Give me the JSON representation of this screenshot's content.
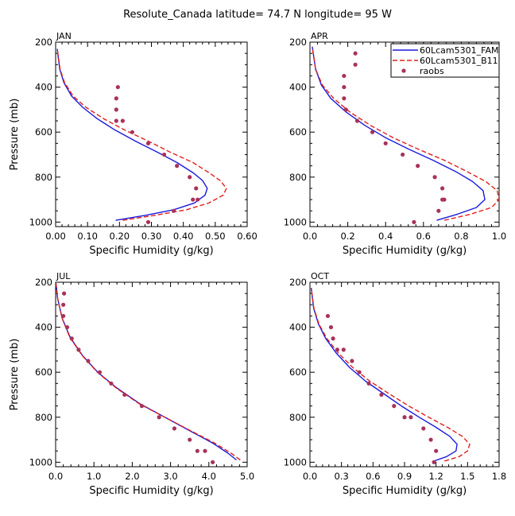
{
  "title": "Resolute_Canada   latitude= 74.7 N longitude= 95 W",
  "colors": {
    "model1": "#1a1adc",
    "model2": "#e0201c",
    "obs": "#a8325a"
  },
  "legend": {
    "entries": [
      {
        "label": "60Lcam5301_FAM",
        "style": "solid",
        "color": "#1a1adc"
      },
      {
        "label": "60Lcam5301_B11",
        "style": "dashed",
        "color": "#e0201c"
      },
      {
        "label": "raobs",
        "style": "dot",
        "color": "#a8325a"
      }
    ]
  },
  "chart_data": [
    {
      "type": "line",
      "panel": "JAN",
      "xlabel": "Specific Humidity (g/kg)",
      "ylabel": "Pressure (mb)",
      "xlim": [
        0,
        0.6
      ],
      "ylim": [
        1020,
        200
      ],
      "xticks": [
        "0.00",
        "0.10",
        "0.20",
        "0.30",
        "0.40",
        "0.50",
        "0.60"
      ],
      "yticks": [
        200,
        400,
        600,
        800,
        1000
      ],
      "series": [
        {
          "name": "60Lcam5301_FAM",
          "style": "solid",
          "color": "#1a1adc",
          "x": [
            0.188,
            0.28,
            0.37,
            0.435,
            0.468,
            0.475,
            0.46,
            0.43,
            0.38,
            0.32,
            0.25,
            0.185,
            0.13,
            0.085,
            0.05,
            0.026,
            0.013,
            0.005
          ],
          "y": [
            992,
            970,
            945,
            915,
            880,
            850,
            815,
            780,
            735,
            690,
            640,
            590,
            540,
            490,
            440,
            380,
            320,
            230
          ]
        },
        {
          "name": "60Lcam5301_B11",
          "style": "dashed",
          "color": "#e0201c",
          "x": [
            0.21,
            0.31,
            0.41,
            0.48,
            0.525,
            0.535,
            0.515,
            0.48,
            0.43,
            0.36,
            0.29,
            0.215,
            0.15,
            0.095,
            0.055,
            0.028,
            0.014,
            0.005
          ],
          "y": [
            992,
            970,
            945,
            915,
            880,
            850,
            815,
            780,
            735,
            690,
            640,
            590,
            540,
            490,
            440,
            380,
            320,
            230
          ]
        },
        {
          "name": "raobs",
          "style": "dot",
          "color": "#a8325a",
          "x": [
            0.195,
            0.19,
            0.19,
            0.19,
            0.21,
            0.24,
            0.29,
            0.34,
            0.38,
            0.42,
            0.44,
            0.445,
            0.43,
            0.37,
            0.29
          ],
          "y": [
            400,
            450,
            500,
            550,
            550,
            600,
            650,
            700,
            750,
            800,
            850,
            900,
            900,
            950,
            1000
          ]
        }
      ]
    },
    {
      "type": "line",
      "panel": "APR",
      "xlabel": "Specific Humidity (g/kg)",
      "ylabel": "Pressure (mb)",
      "xlim": [
        0,
        1.0
      ],
      "ylim": [
        1020,
        200
      ],
      "xticks": [
        "0.0",
        "0.2",
        "0.4",
        "0.6",
        "0.8",
        "1.0"
      ],
      "yticks": [
        200,
        400,
        600,
        800,
        1000
      ],
      "series": [
        {
          "name": "60Lcam5301_FAM",
          "style": "solid",
          "color": "#1a1adc",
          "x": [
            0.67,
            0.78,
            0.88,
            0.925,
            0.915,
            0.86,
            0.77,
            0.65,
            0.52,
            0.4,
            0.29,
            0.19,
            0.11,
            0.06,
            0.03,
            0.012
          ],
          "y": [
            992,
            965,
            935,
            900,
            860,
            820,
            775,
            725,
            675,
            625,
            570,
            510,
            450,
            390,
            320,
            220
          ]
        },
        {
          "name": "60Lcam5301_B11",
          "style": "dashed",
          "color": "#e0201c",
          "x": [
            0.71,
            0.85,
            0.96,
            1.0,
            0.99,
            0.93,
            0.83,
            0.71,
            0.57,
            0.44,
            0.32,
            0.21,
            0.125,
            0.065,
            0.03,
            0.012
          ],
          "y": [
            992,
            965,
            935,
            900,
            860,
            820,
            775,
            725,
            675,
            625,
            570,
            510,
            450,
            390,
            320,
            220
          ]
        },
        {
          "name": "raobs",
          "style": "dot",
          "color": "#a8325a",
          "x": [
            0.24,
            0.24,
            0.18,
            0.18,
            0.18,
            0.19,
            0.25,
            0.33,
            0.4,
            0.49,
            0.57,
            0.66,
            0.7,
            0.71,
            0.7,
            0.68,
            0.55
          ],
          "y": [
            250,
            300,
            350,
            400,
            450,
            500,
            550,
            600,
            650,
            700,
            750,
            800,
            850,
            900,
            900,
            950,
            1000
          ]
        }
      ]
    },
    {
      "type": "line",
      "panel": "JUL",
      "xlabel": "Specific Humidity (g/kg)",
      "ylabel": "Pressure (mb)",
      "xlim": [
        0,
        5.0
      ],
      "ylim": [
        1020,
        200
      ],
      "xticks": [
        "0.0",
        "1.0",
        "2.0",
        "3.0",
        "4.0",
        "5.0"
      ],
      "yticks": [
        200,
        400,
        600,
        800,
        1000
      ],
      "series": [
        {
          "name": "60Lcam5301_FAM",
          "style": "solid",
          "color": "#1a1adc",
          "x": [
            4.72,
            4.5,
            4.1,
            3.5,
            2.85,
            2.2,
            1.6,
            1.1,
            0.7,
            0.38,
            0.17,
            0.05,
            0.01
          ],
          "y": [
            990,
            960,
            915,
            860,
            800,
            740,
            670,
            600,
            525,
            445,
            360,
            270,
            205
          ]
        },
        {
          "name": "60Lcam5301_B11",
          "style": "dashed",
          "color": "#e0201c",
          "x": [
            4.82,
            4.58,
            4.15,
            3.52,
            2.85,
            2.18,
            1.58,
            1.09,
            0.69,
            0.37,
            0.17,
            0.05,
            0.01
          ],
          "y": [
            990,
            960,
            915,
            860,
            800,
            740,
            670,
            600,
            525,
            445,
            360,
            270,
            205
          ]
        },
        {
          "name": "raobs",
          "style": "dot",
          "color": "#a8325a",
          "x": [
            0.22,
            0.2,
            0.2,
            0.3,
            0.42,
            0.6,
            0.85,
            1.15,
            1.45,
            1.8,
            2.25,
            2.7,
            3.1,
            3.5,
            3.7,
            3.9,
            4.1
          ],
          "y": [
            250,
            300,
            350,
            400,
            450,
            500,
            550,
            600,
            650,
            700,
            750,
            800,
            850,
            900,
            950,
            950,
            1000
          ]
        }
      ]
    },
    {
      "type": "line",
      "panel": "OCT",
      "xlabel": "Specific Humidity (g/kg)",
      "ylabel": "Pressure (mb)",
      "xlim": [
        0,
        1.8
      ],
      "ylim": [
        1020,
        200
      ],
      "xticks": [
        "0.0",
        "0.3",
        "0.6",
        "0.9",
        "1.2",
        "1.5",
        "1.8"
      ],
      "yticks": [
        200,
        400,
        600,
        800,
        1000
      ],
      "series": [
        {
          "name": "60Lcam5301_FAM",
          "style": "solid",
          "color": "#1a1adc",
          "x": [
            1.18,
            1.3,
            1.39,
            1.4,
            1.33,
            1.2,
            1.04,
            0.87,
            0.7,
            0.53,
            0.38,
            0.25,
            0.15,
            0.08,
            0.035,
            0.012
          ],
          "y": [
            995,
            975,
            950,
            920,
            885,
            845,
            800,
            750,
            695,
            640,
            580,
            515,
            450,
            385,
            315,
            225
          ]
        },
        {
          "name": "60Lcam5301_B11",
          "style": "dashed",
          "color": "#e0201c",
          "x": [
            1.28,
            1.42,
            1.5,
            1.52,
            1.45,
            1.31,
            1.13,
            0.94,
            0.75,
            0.57,
            0.41,
            0.27,
            0.16,
            0.085,
            0.037,
            0.012
          ],
          "y": [
            995,
            975,
            950,
            920,
            885,
            845,
            800,
            750,
            695,
            640,
            580,
            515,
            450,
            385,
            315,
            225
          ]
        },
        {
          "name": "raobs",
          "style": "dot",
          "color": "#a8325a",
          "x": [
            0.17,
            0.2,
            0.22,
            0.26,
            0.32,
            0.4,
            0.47,
            0.56,
            0.68,
            0.8,
            0.9,
            0.96,
            1.08,
            1.15,
            1.2,
            1.18
          ],
          "y": [
            350,
            400,
            450,
            500,
            500,
            550,
            600,
            650,
            700,
            750,
            800,
            800,
            850,
            900,
            950,
            1000
          ]
        }
      ]
    }
  ]
}
